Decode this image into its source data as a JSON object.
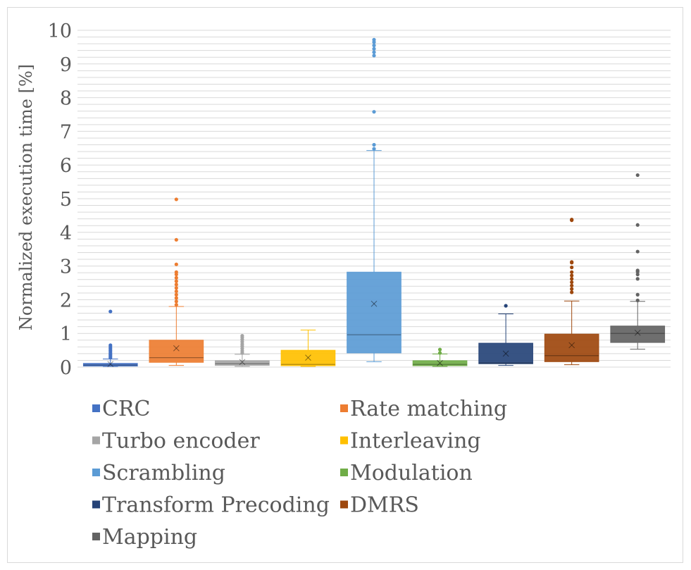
{
  "chart_data": {
    "type": "box",
    "title": "",
    "xlabel": "",
    "ylabel": "Normalized execution time [%]",
    "ylim": [
      0,
      10
    ],
    "yticks": [
      "0",
      "1",
      "2",
      "3",
      "4",
      "5",
      "6",
      "7",
      "8",
      "9",
      "10"
    ],
    "minor_gridline_step": 0.2,
    "grid": true,
    "legend_position": "bottom",
    "series": [
      {
        "name": "CRC",
        "color": "#4472C4",
        "min": 0.02,
        "q1": 0.03,
        "median": 0.06,
        "q3": 0.11,
        "max": 0.24,
        "mean": 0.09,
        "outliers": [
          0.28,
          0.32,
          0.36,
          0.4,
          0.45,
          0.5,
          0.55,
          0.6,
          0.65,
          1.65
        ]
      },
      {
        "name": "Rate matching",
        "color": "#ED7D31",
        "min": 0.05,
        "q1": 0.14,
        "median": 0.28,
        "q3": 0.8,
        "max": 1.8,
        "mean": 0.56,
        "outliers": [
          1.85,
          1.95,
          2.05,
          2.15,
          2.25,
          2.35,
          2.45,
          2.55,
          2.65,
          2.75,
          2.82,
          3.05,
          3.78,
          4.98
        ]
      },
      {
        "name": "Turbo encoder",
        "color": "#A5A5A5",
        "min": 0.02,
        "q1": 0.05,
        "median": 0.1,
        "q3": 0.19,
        "max": 0.38,
        "mean": 0.15,
        "outliers": [
          0.42,
          0.48,
          0.55,
          0.62,
          0.68,
          0.75,
          0.82,
          0.88,
          0.93
        ]
      },
      {
        "name": "Interleaving",
        "color": "#FFC000",
        "min": 0.02,
        "q1": 0.04,
        "median": 0.08,
        "q3": 0.5,
        "max": 1.1,
        "mean": 0.28,
        "outliers": []
      },
      {
        "name": "Scrambling",
        "color": "#5B9BD5",
        "min": 0.16,
        "q1": 0.42,
        "median": 0.96,
        "q3": 2.82,
        "max": 6.43,
        "mean": 1.88,
        "outliers": [
          6.48,
          6.6,
          7.58,
          9.25,
          9.35,
          9.45,
          9.55,
          9.65,
          9.72
        ]
      },
      {
        "name": "Modulation",
        "color": "#70AD47",
        "min": 0.02,
        "q1": 0.04,
        "median": 0.08,
        "q3": 0.19,
        "max": 0.39,
        "mean": 0.12,
        "outliers": [
          0.42,
          0.52
        ]
      },
      {
        "name": "Transform Precoding",
        "color": "#264478",
        "min": 0.05,
        "q1": 0.1,
        "median": 0.12,
        "q3": 0.71,
        "max": 1.58,
        "mean": 0.4,
        "outliers": [
          1.82
        ]
      },
      {
        "name": "DMRS",
        "color": "#9E480E",
        "min": 0.07,
        "q1": 0.16,
        "median": 0.34,
        "q3": 0.98,
        "max": 1.96,
        "mean": 0.65,
        "outliers": [
          2.22,
          2.32,
          2.42,
          2.52,
          2.62,
          2.72,
          2.82,
          2.96,
          3.1,
          3.12,
          4.36,
          4.38
        ]
      },
      {
        "name": "Mapping",
        "color": "#636363",
        "min": 0.53,
        "q1": 0.73,
        "median": 1.0,
        "q3": 1.22,
        "max": 1.95,
        "mean": 1.02,
        "outliers": [
          1.98,
          2.15,
          2.62,
          2.75,
          2.83,
          2.87,
          3.43,
          4.22,
          5.7
        ]
      }
    ]
  }
}
